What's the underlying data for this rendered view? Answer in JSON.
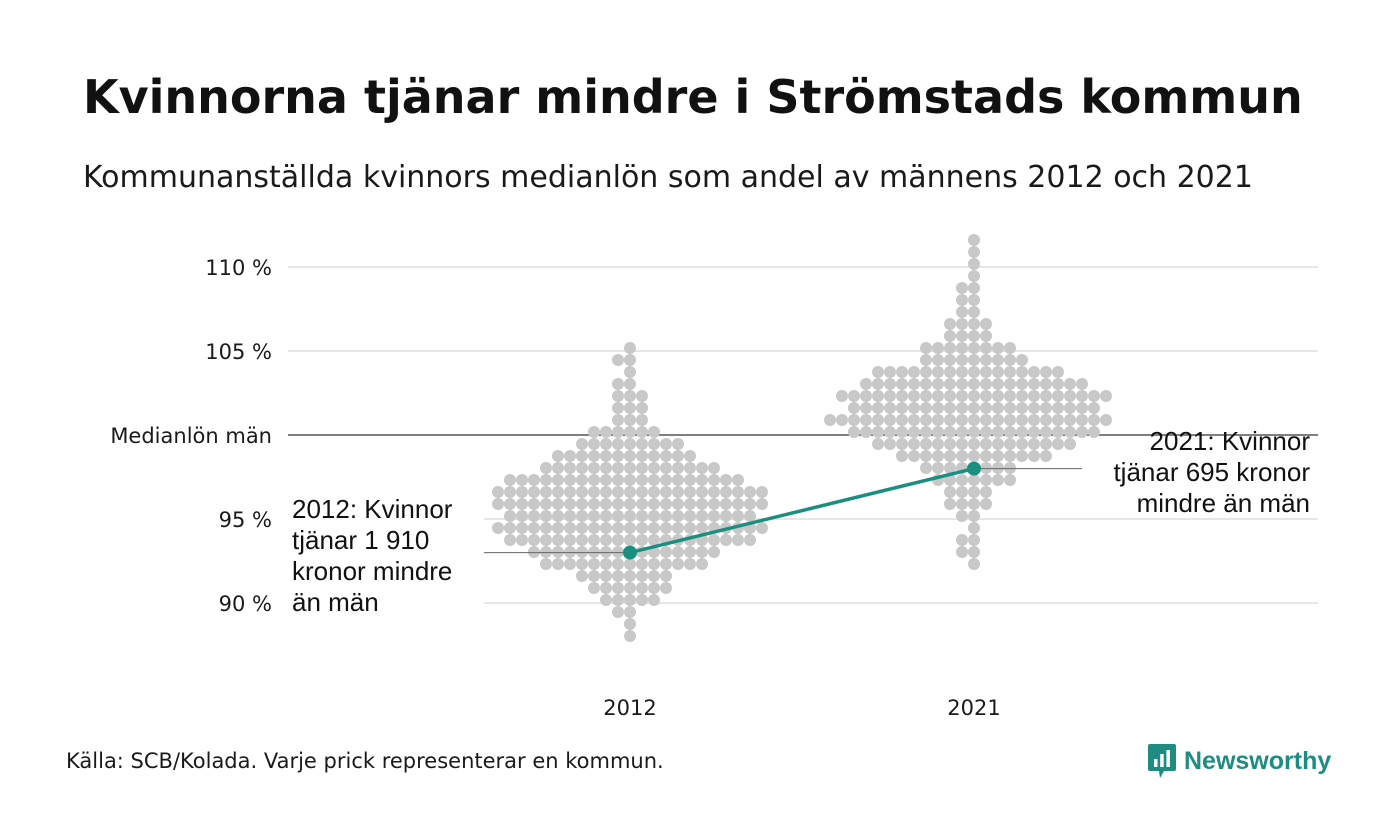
{
  "title": "Kvinnorna tjänar mindre i Strömstads kommun",
  "subtitle": "Kommunanställda kvinnors medianlön som andel av männens 2012 och 2021",
  "source": "Källa: SCB/Kolada. Varje prick representerar en kommun.",
  "brand": {
    "name": "Newsworthy",
    "icon": "newsworthy-logo-icon",
    "color": "#1f8c82"
  },
  "colors": {
    "highlight": "#1a8f80",
    "dots": "#c8c8c8",
    "grid": "#e6e6e6",
    "reference": "#333333"
  },
  "chart_data": {
    "type": "scatter",
    "title": "Kvinnorna tjänar mindre i Strömstads kommun",
    "subtitle": "Kommunanställda kvinnors medianlön som andel av männens 2012 och 2021",
    "categories": [
      "2012",
      "2021"
    ],
    "ylim": [
      86.5,
      111.5
    ],
    "grid": true,
    "y_ticks": [
      {
        "value": 110,
        "label": "110 %"
      },
      {
        "value": 105,
        "label": "105 %"
      },
      {
        "value": 100,
        "label": "Medianlön män"
      },
      {
        "value": 95,
        "label": "95 %"
      },
      {
        "value": 90,
        "label": "90 %"
      }
    ],
    "reference_line": {
      "value": 100,
      "label": "Medianlön män"
    },
    "distributions": [
      {
        "category": "2012",
        "values": [
          87.7,
          89.1,
          89.2,
          89.6,
          89.9,
          90.2,
          90.4,
          90.6,
          90.7,
          90.8,
          90.9,
          91.1,
          91.2,
          91.3,
          91.4,
          91.5,
          91.6,
          91.7,
          91.8,
          91.9,
          92.0,
          92.1,
          92.1,
          92.2,
          92.3,
          92.3,
          92.4,
          92.5,
          92.5,
          92.6,
          92.6,
          92.7,
          92.8,
          92.8,
          92.9,
          92.9,
          93.0,
          93.0,
          93.1,
          93.1,
          93.2,
          93.2,
          93.3,
          93.3,
          93.4,
          93.4,
          93.5,
          93.5,
          93.6,
          93.6,
          93.7,
          93.7,
          93.8,
          93.8,
          93.9,
          93.9,
          94.0,
          94.0,
          94.0,
          94.1,
          94.1,
          94.2,
          94.2,
          94.2,
          94.3,
          94.3,
          94.4,
          94.4,
          94.4,
          94.5,
          94.5,
          94.6,
          94.6,
          94.6,
          94.7,
          94.7,
          94.8,
          94.8,
          94.8,
          94.9,
          94.9,
          95.0,
          95.0,
          95.0,
          95.1,
          95.1,
          95.2,
          95.2,
          95.2,
          95.3,
          95.3,
          95.4,
          95.4,
          95.4,
          95.5,
          95.5,
          95.6,
          95.6,
          95.6,
          95.7,
          95.7,
          95.8,
          95.8,
          95.8,
          95.9,
          95.9,
          96.0,
          96.0,
          96.0,
          96.1,
          96.1,
          96.2,
          96.2,
          96.2,
          96.3,
          96.3,
          96.4,
          96.4,
          96.4,
          96.5,
          96.5,
          96.6,
          96.6,
          96.6,
          96.7,
          96.7,
          96.8,
          96.8,
          96.8,
          96.9,
          96.9,
          97.0,
          97.0,
          97.0,
          97.1,
          97.1,
          97.2,
          97.2,
          97.2,
          97.3,
          97.3,
          97.4,
          97.4,
          97.5,
          97.5,
          97.6,
          97.6,
          97.7,
          97.7,
          97.8,
          97.8,
          97.9,
          97.9,
          98.0,
          98.0,
          98.1,
          98.1,
          98.2,
          98.2,
          98.3,
          98.3,
          98.4,
          98.4,
          98.5,
          98.6,
          98.6,
          98.7,
          98.8,
          98.9,
          99.0,
          99.1,
          99.2,
          99.3,
          99.4,
          99.5,
          99.6,
          99.7,
          99.8,
          99.9,
          100.0,
          100.1,
          100.3,
          100.5,
          100.7,
          100.9,
          101.1,
          101.3,
          101.5,
          101.7,
          102.0,
          102.3,
          102.6,
          102.9,
          103.3,
          103.7,
          104.2,
          104.7,
          105.2,
          90.0,
          90.5,
          91.0,
          91.5,
          92.0,
          92.4,
          92.8,
          93.2,
          93.6,
          94.0,
          94.4,
          94.8,
          95.2,
          95.6,
          96.0,
          96.4,
          96.8,
          97.2,
          97.6,
          98.0,
          98.4,
          98.8,
          99.2,
          99.6,
          100.0,
          94.1,
          94.5,
          94.9,
          95.3,
          95.7,
          96.1,
          96.5,
          96.9,
          97.3,
          92.6,
          93.1,
          93.6,
          94.2,
          94.7,
          95.3,
          95.8,
          96.3,
          96.9,
          97.4
        ]
      },
      {
        "category": "2021",
        "values": [
          92.5,
          92.9,
          93.3,
          93.7,
          94.1,
          94.5,
          94.9,
          95.3,
          95.6,
          95.9,
          96.2,
          96.4,
          96.6,
          96.8,
          97.0,
          97.2,
          97.4,
          97.5,
          97.6,
          97.7,
          97.8,
          97.9,
          98.0,
          98.1,
          98.2,
          98.3,
          98.4,
          98.5,
          98.6,
          98.7,
          98.8,
          98.9,
          99.0,
          99.0,
          99.1,
          99.1,
          99.2,
          99.2,
          99.3,
          99.3,
          99.4,
          99.4,
          99.5,
          99.5,
          99.6,
          99.6,
          99.7,
          99.7,
          99.8,
          99.8,
          99.9,
          99.9,
          100.0,
          100.0,
          100.0,
          100.1,
          100.1,
          100.2,
          100.2,
          100.2,
          100.3,
          100.3,
          100.4,
          100.4,
          100.4,
          100.5,
          100.5,
          100.6,
          100.6,
          100.6,
          100.7,
          100.7,
          100.8,
          100.8,
          100.8,
          100.9,
          100.9,
          101.0,
          101.0,
          101.0,
          101.1,
          101.1,
          101.2,
          101.2,
          101.2,
          101.3,
          101.3,
          101.4,
          101.4,
          101.4,
          101.5,
          101.5,
          101.6,
          101.6,
          101.6,
          101.7,
          101.7,
          101.8,
          101.8,
          101.8,
          101.9,
          101.9,
          102.0,
          102.0,
          102.0,
          102.1,
          102.1,
          102.2,
          102.2,
          102.2,
          102.3,
          102.3,
          102.4,
          102.4,
          102.4,
          102.5,
          102.5,
          102.6,
          102.6,
          102.6,
          102.7,
          102.7,
          102.8,
          102.8,
          102.9,
          102.9,
          103.0,
          103.0,
          103.1,
          103.1,
          103.2,
          103.2,
          103.3,
          103.3,
          103.4,
          103.4,
          103.5,
          103.5,
          103.6,
          103.6,
          103.7,
          103.7,
          103.8,
          103.8,
          103.9,
          104.0,
          104.0,
          104.1,
          104.2,
          104.2,
          104.3,
          104.4,
          104.5,
          104.6,
          104.7,
          104.8,
          104.9,
          105.0,
          105.1,
          105.2,
          105.3,
          105.5,
          105.7,
          105.9,
          106.1,
          106.3,
          106.5,
          106.7,
          106.9,
          107.2,
          107.5,
          107.8,
          108.2,
          108.6,
          109.1,
          109.6,
          110.1,
          110.6,
          111.3,
          96.0,
          96.5,
          97.0,
          97.5,
          98.0,
          98.5,
          99.0,
          99.5,
          100.0,
          100.5,
          101.0,
          101.5,
          102.0,
          102.5,
          103.0,
          103.5,
          104.0,
          104.5,
          105.0,
          105.5,
          106.0,
          100.3,
          100.6,
          100.9,
          101.2,
          101.5,
          101.8,
          102.1,
          102.4,
          102.7,
          103.0,
          98.7,
          99.2,
          99.7,
          100.2,
          100.7,
          101.2,
          101.7,
          102.2,
          102.7,
          103.2
        ]
      }
    ],
    "highlight": {
      "name": "Strömstad",
      "points": [
        {
          "x": "2012",
          "y": 93.0,
          "label_lines": [
            "2012: Kvinnor",
            "tjänar 1 910",
            "kronor mindre",
            "än män"
          ]
        },
        {
          "x": "2021",
          "y": 98.0,
          "label_lines": [
            "2021: Kvinnor",
            "tjänar 695 kronor",
            "mindre än män"
          ]
        }
      ]
    }
  }
}
